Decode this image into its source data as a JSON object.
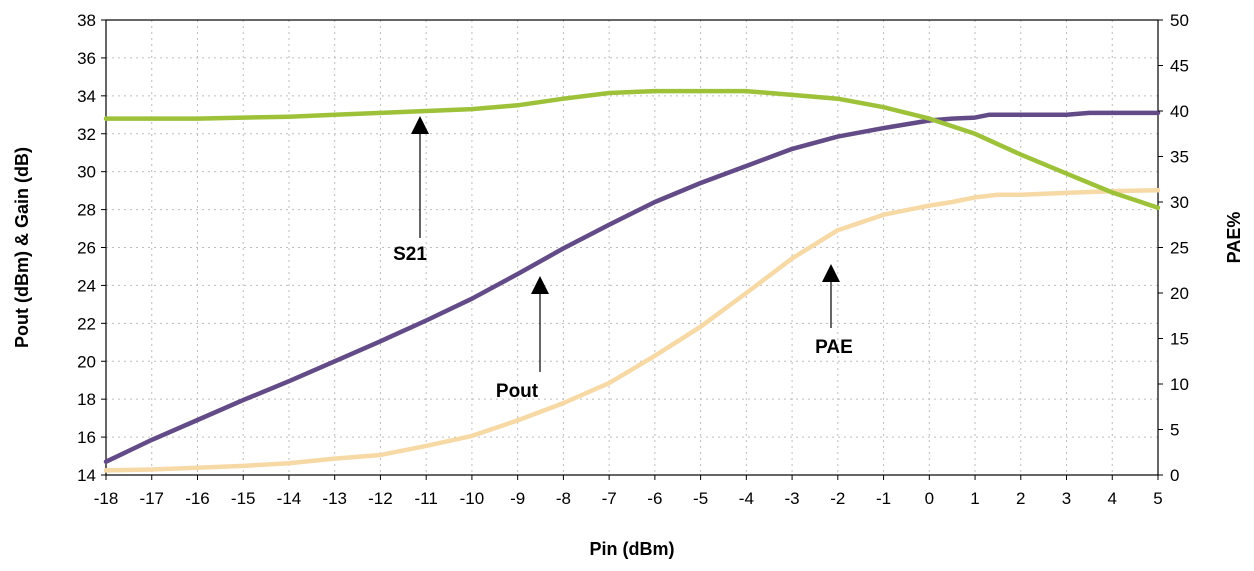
{
  "chart_data": {
    "type": "line",
    "xlabel": "Pin (dBm)",
    "ylabel": "Pout (dBm) & Gain (dB)",
    "y2label": "PAE%",
    "xlim": [
      -18,
      5
    ],
    "ylim": [
      14,
      38
    ],
    "y2lim": [
      0,
      50
    ],
    "xticks": [
      -18,
      -17,
      -16,
      -15,
      -14,
      -13,
      -12,
      -11,
      -10,
      -9,
      -8,
      -7,
      -6,
      -5,
      -4,
      -3,
      -2,
      -1,
      0,
      1,
      2,
      3,
      4,
      5
    ],
    "yticks": [
      14,
      16,
      18,
      20,
      22,
      24,
      26,
      28,
      30,
      32,
      34,
      36,
      38
    ],
    "y2ticks": [
      0,
      5,
      10,
      15,
      20,
      25,
      30,
      35,
      40,
      45,
      50
    ],
    "grid": true,
    "series": [
      {
        "name": "S21",
        "axis": "left",
        "color": "#9dc23a",
        "x": [
          -18,
          -17,
          -16,
          -15,
          -14,
          -13,
          -12,
          -11,
          -10,
          -9,
          -8,
          -7,
          -6,
          -5,
          -4,
          -3,
          -2,
          -1,
          0,
          1,
          2,
          3,
          4,
          5
        ],
        "y": [
          32.8,
          32.8,
          32.8,
          32.85,
          32.9,
          33.0,
          33.1,
          33.2,
          33.3,
          33.5,
          33.85,
          34.15,
          34.25,
          34.25,
          34.25,
          34.05,
          33.85,
          33.4,
          32.8,
          32.0,
          30.9,
          29.9,
          28.9,
          28.1
        ]
      },
      {
        "name": "Pout",
        "axis": "left",
        "color": "#634b87",
        "x": [
          -18,
          -17,
          -16,
          -15,
          -14,
          -13,
          -12,
          -11,
          -10,
          -9,
          -8,
          -7,
          -6,
          -5,
          -4,
          -3,
          -2,
          -1,
          0,
          0.5,
          1,
          1.3,
          2,
          3,
          3.5,
          4,
          5
        ],
        "y": [
          14.7,
          15.85,
          16.9,
          17.95,
          18.95,
          20.0,
          21.05,
          22.15,
          23.3,
          24.6,
          25.95,
          27.2,
          28.4,
          29.4,
          30.3,
          31.2,
          31.85,
          32.3,
          32.7,
          32.8,
          32.85,
          33.0,
          33.0,
          33.0,
          33.1,
          33.1,
          33.1
        ]
      },
      {
        "name": "PAE",
        "axis": "right",
        "color": "#f7d9a6",
        "x": [
          -18,
          -17,
          -16,
          -15,
          -14,
          -13,
          -12,
          -11,
          -10,
          -9,
          -8,
          -7,
          -6,
          -5,
          -4,
          -3,
          -2,
          -1,
          0,
          0.5,
          1,
          1.5,
          2,
          3,
          4,
          5
        ],
        "y": [
          0.5,
          0.6,
          0.8,
          1.0,
          1.3,
          1.8,
          2.2,
          3.2,
          4.3,
          6.0,
          7.9,
          10.1,
          13.1,
          16.3,
          20.0,
          23.8,
          26.9,
          28.6,
          29.6,
          30.0,
          30.5,
          30.8,
          30.8,
          31.0,
          31.2,
          31.3
        ]
      }
    ],
    "annotations": [
      {
        "text": "S21",
        "x": -11,
        "y": 33.2,
        "axis": "left"
      },
      {
        "text": "Pout",
        "x": -8.5,
        "y": 25.3,
        "axis": "left"
      },
      {
        "text": "PAE",
        "x": -2.1,
        "y": 22.2,
        "axis": "right"
      }
    ]
  }
}
